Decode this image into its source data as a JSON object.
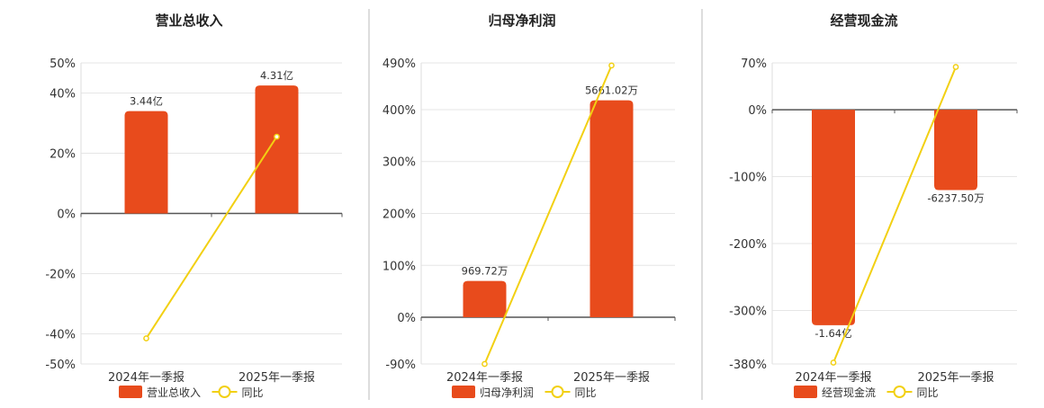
{
  "colors": {
    "bar": "#E84B1C",
    "line": "#F2D013",
    "grid": "#E6E6E6",
    "axis": "#555555",
    "divider": "#BBBBBB"
  },
  "chart_data": [
    {
      "type": "bar",
      "title": "营业总收入",
      "categories": [
        "2024年一季报",
        "2025年一季报"
      ],
      "series": [
        {
          "name": "营业总收入",
          "type": "bar",
          "values": [
            34.0,
            42.5
          ],
          "labels": [
            "3.44亿",
            "4.31亿"
          ]
        },
        {
          "name": "同比",
          "type": "line",
          "values": [
            -41.5,
            25.5
          ]
        }
      ],
      "ylim": [
        -50,
        50
      ],
      "yticks": [
        50,
        40,
        20,
        0,
        -20,
        -40,
        -50
      ],
      "ytick_labels": [
        "50%",
        "40%",
        "20%",
        "0%",
        "-20%",
        "-40%",
        "-50%"
      ],
      "grid": true,
      "legend_position": "bottom"
    },
    {
      "type": "bar",
      "title": "归母净利润",
      "categories": [
        "2024年一季报",
        "2025年一季报"
      ],
      "series": [
        {
          "name": "归母净利润",
          "type": "bar",
          "values": [
            70,
            418
          ],
          "labels": [
            "969.72万",
            "5661.02万"
          ]
        },
        {
          "name": "同比",
          "type": "line",
          "values": [
            -90,
            485
          ]
        }
      ],
      "ylim": [
        -90,
        490
      ],
      "yticks": [
        490,
        400,
        300,
        200,
        100,
        0,
        -90
      ],
      "ytick_labels": [
        "490%",
        "400%",
        "300%",
        "200%",
        "100%",
        "0%",
        "-90%"
      ],
      "grid": true,
      "legend_position": "bottom"
    },
    {
      "type": "bar",
      "title": "经营现金流",
      "categories": [
        "2024年一季报",
        "2025年一季报"
      ],
      "series": [
        {
          "name": "经营现金流",
          "type": "bar",
          "values": [
            -322,
            -120
          ],
          "labels": [
            "-1.64亿",
            "-6237.50万"
          ]
        },
        {
          "name": "同比",
          "type": "line",
          "values": [
            -378,
            64
          ]
        }
      ],
      "ylim": [
        -380,
        70
      ],
      "yticks": [
        70,
        0,
        -100,
        -200,
        -300,
        -380
      ],
      "ytick_labels": [
        "70%",
        "0%",
        "-100%",
        "-200%",
        "-300%",
        "-380%"
      ],
      "grid": true,
      "legend_position": "bottom"
    }
  ]
}
